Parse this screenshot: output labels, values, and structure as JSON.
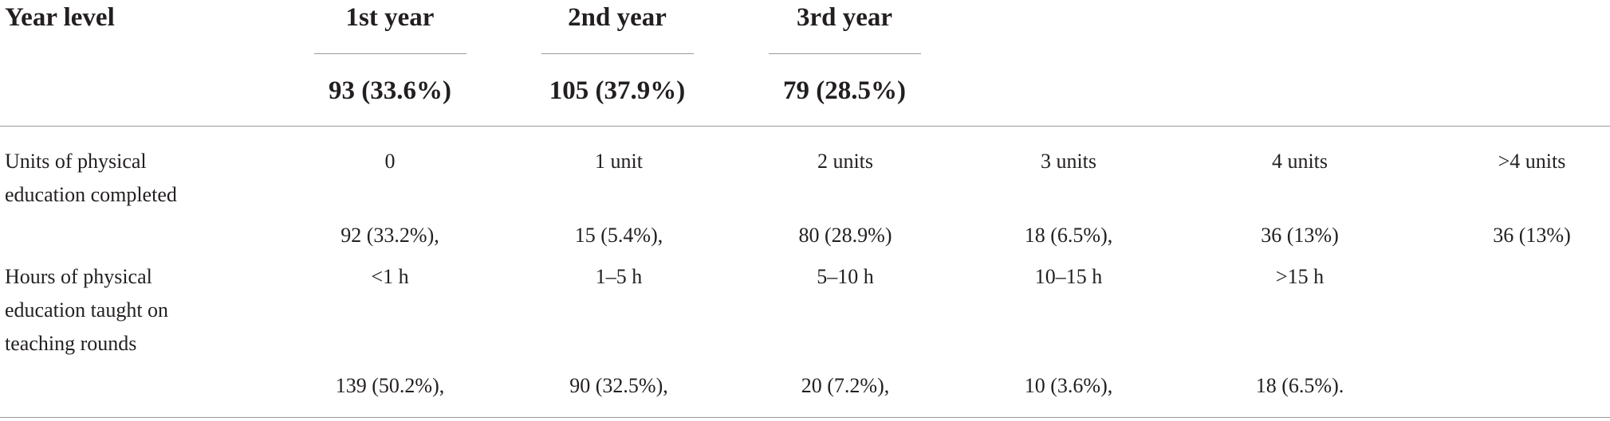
{
  "header": {
    "row_label": "Year level",
    "years": [
      {
        "label": "1st year",
        "value": "93 (33.6%)"
      },
      {
        "label": "2nd year",
        "value": "105 (37.9%)"
      },
      {
        "label": "3rd year",
        "value": "79 (28.5%)"
      }
    ]
  },
  "rows": [
    {
      "label_lines": [
        "Units of physical",
        "education completed"
      ],
      "categories": [
        "0",
        "1 unit",
        "2 units",
        "3 units",
        "4 units",
        ">4 units"
      ],
      "values": [
        "92 (33.2%),",
        "15 (5.4%),",
        "80 (28.9%)",
        "18 (6.5%),",
        "36 (13%)",
        "36 (13%)"
      ]
    },
    {
      "label_lines": [
        "Hours of physical",
        "education taught on",
        "teaching rounds"
      ],
      "categories": [
        "<1 h",
        "1–5 h",
        "5–10 h",
        "10–15 h",
        ">15 h"
      ],
      "values": [
        "139 (50.2%),",
        "90 (32.5%),",
        "20 (7.2%),",
        "10 (3.6%),",
        "18 (6.5%)."
      ]
    }
  ]
}
